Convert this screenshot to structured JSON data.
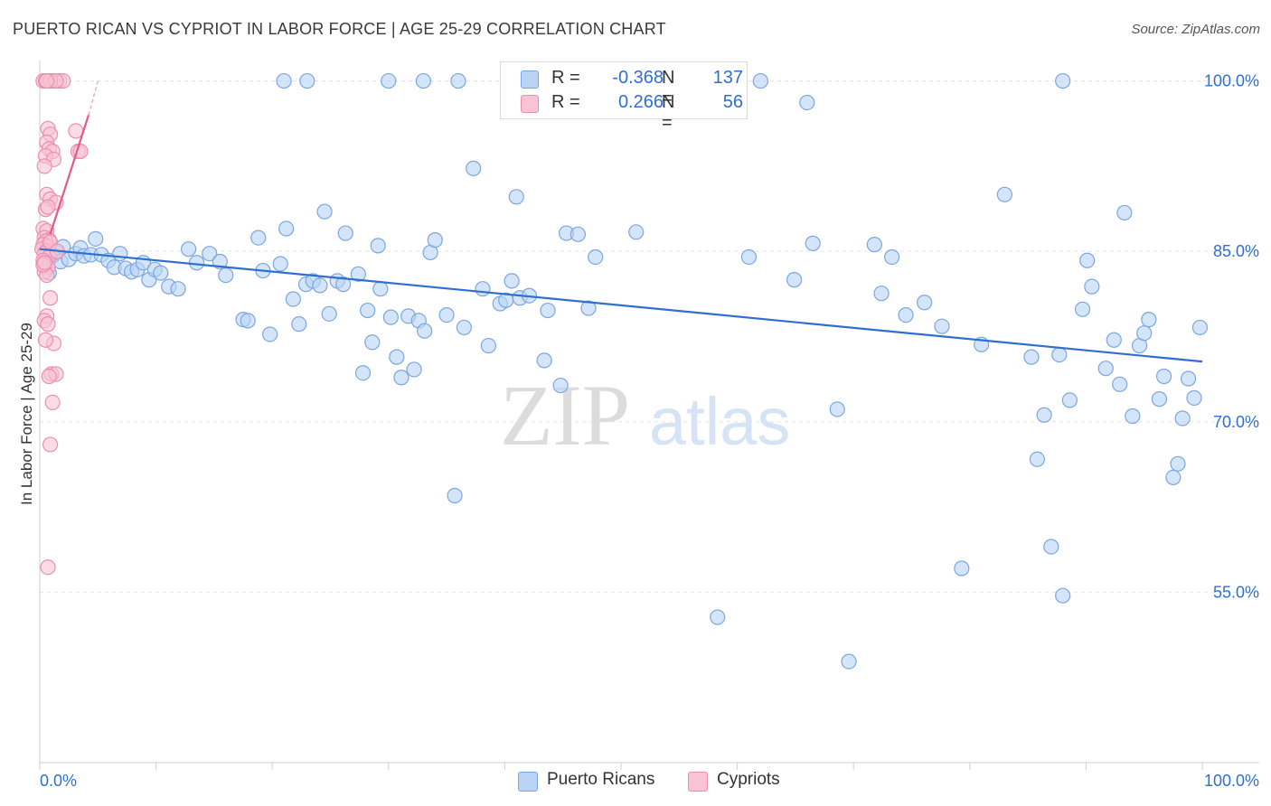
{
  "title": "PUERTO RICAN VS CYPRIOT IN LABOR FORCE | AGE 25-29 CORRELATION CHART",
  "source": "Source: ZipAtlas.com",
  "watermark": {
    "zip": "ZIP",
    "atlas": "atlas"
  },
  "legend": {
    "r_label": "R =",
    "n_label": "N =",
    "rows": [
      {
        "r": "-0.368",
        "n": "137",
        "fill": "#b9d3f5",
        "stroke": "#7ba6e0"
      },
      {
        "r": "0.266",
        "n": "56",
        "fill": "#f9c3d4",
        "stroke": "#ec8fae"
      }
    ]
  },
  "bottom_legend": [
    {
      "label": "Puerto Ricans",
      "fill": "#b9d3f5",
      "stroke": "#7ba6e0"
    },
    {
      "label": "Cypriots",
      "fill": "#f9c3d4",
      "stroke": "#ec8fae"
    }
  ],
  "chart_data": {
    "type": "scatter",
    "title": "PUERTO RICAN VS CYPRIOT IN LABOR FORCE | AGE 25-29 CORRELATION CHART",
    "xlabel": "",
    "ylabel": "In Labor Force | Age 25-29",
    "xlim": [
      0,
      100
    ],
    "ylim": [
      40,
      101
    ],
    "x_tick_labels": [
      "0.0%",
      "100.0%"
    ],
    "y_ticks": [
      55,
      70,
      85,
      100
    ],
    "y_tick_labels": [
      "55.0%",
      "70.0%",
      "85.0%",
      "100.0%"
    ],
    "grid": true,
    "legend_position": "top-center",
    "series": [
      {
        "name": "Puerto Ricans",
        "color": "#2f6fd0",
        "marker_fill": "#b9d3f5",
        "marker_stroke": "#7ba6e0",
        "trend": [
          [
            0,
            85.2
          ],
          [
            100,
            75.3
          ]
        ],
        "points": [
          [
            0.6,
            84.2
          ],
          [
            0.8,
            83.1
          ],
          [
            1.1,
            84.6
          ],
          [
            1.4,
            84.9
          ],
          [
            1.8,
            84.1
          ],
          [
            2.0,
            85.4
          ],
          [
            2.5,
            84.3
          ],
          [
            3.1,
            84.8
          ],
          [
            3.5,
            85.3
          ],
          [
            3.8,
            84.6
          ],
          [
            4.4,
            84.7
          ],
          [
            4.8,
            86.1
          ],
          [
            5.3,
            84.7
          ],
          [
            5.9,
            84.2
          ],
          [
            6.4,
            83.6
          ],
          [
            6.9,
            84.8
          ],
          [
            7.4,
            83.5
          ],
          [
            7.9,
            83.2
          ],
          [
            8.4,
            83.4
          ],
          [
            8.9,
            84.0
          ],
          [
            9.4,
            82.5
          ],
          [
            9.9,
            83.4
          ],
          [
            10.4,
            83.1
          ],
          [
            11.1,
            81.9
          ],
          [
            11.9,
            81.7
          ],
          [
            12.8,
            85.2
          ],
          [
            13.5,
            84.0
          ],
          [
            14.6,
            84.8
          ],
          [
            15.5,
            84.1
          ],
          [
            16.0,
            82.9
          ],
          [
            17.5,
            79.0
          ],
          [
            17.9,
            78.9
          ],
          [
            18.8,
            86.2
          ],
          [
            19.2,
            83.3
          ],
          [
            19.8,
            77.7
          ],
          [
            20.7,
            83.9
          ],
          [
            21.2,
            87.0
          ],
          [
            21.8,
            80.8
          ],
          [
            22.3,
            78.6
          ],
          [
            22.9,
            82.1
          ],
          [
            23.5,
            82.4
          ],
          [
            24.1,
            82.0
          ],
          [
            24.5,
            88.5
          ],
          [
            24.9,
            79.5
          ],
          [
            25.6,
            82.4
          ],
          [
            26.1,
            82.1
          ],
          [
            26.3,
            86.6
          ],
          [
            27.4,
            83.0
          ],
          [
            27.8,
            74.3
          ],
          [
            28.2,
            79.8
          ],
          [
            28.6,
            77.0
          ],
          [
            29.1,
            85.5
          ],
          [
            29.3,
            81.7
          ],
          [
            30.2,
            79.2
          ],
          [
            30.7,
            75.7
          ],
          [
            31.1,
            73.9
          ],
          [
            31.7,
            79.3
          ],
          [
            32.2,
            74.6
          ],
          [
            32.6,
            78.9
          ],
          [
            33.1,
            78.0
          ],
          [
            33.6,
            84.9
          ],
          [
            34.0,
            86.0
          ],
          [
            35.0,
            79.4
          ],
          [
            35.7,
            63.5
          ],
          [
            36.5,
            78.3
          ],
          [
            37.3,
            92.3
          ],
          [
            38.1,
            81.7
          ],
          [
            38.6,
            76.7
          ],
          [
            39.6,
            80.4
          ],
          [
            40.1,
            80.7
          ],
          [
            40.6,
            82.4
          ],
          [
            41.0,
            89.8
          ],
          [
            41.3,
            80.9
          ],
          [
            42.1,
            81.1
          ],
          [
            43.4,
            75.4
          ],
          [
            43.7,
            79.8
          ],
          [
            44.8,
            73.2
          ],
          [
            45.3,
            86.6
          ],
          [
            46.3,
            86.5
          ],
          [
            47.2,
            80.0
          ],
          [
            47.8,
            84.5
          ],
          [
            51.3,
            86.7
          ],
          [
            58.3,
            52.8
          ],
          [
            61.0,
            84.5
          ],
          [
            64.9,
            82.5
          ],
          [
            66.5,
            85.7
          ],
          [
            68.6,
            71.1
          ],
          [
            69.6,
            48.9
          ],
          [
            71.8,
            85.6
          ],
          [
            72.4,
            81.3
          ],
          [
            73.3,
            84.5
          ],
          [
            74.5,
            79.4
          ],
          [
            76.1,
            80.5
          ],
          [
            77.6,
            78.4
          ],
          [
            79.3,
            57.1
          ],
          [
            81.0,
            76.8
          ],
          [
            83.0,
            90.0
          ],
          [
            85.3,
            75.7
          ],
          [
            85.8,
            66.7
          ],
          [
            86.4,
            70.6
          ],
          [
            87.0,
            59.0
          ],
          [
            87.7,
            75.9
          ],
          [
            88.0,
            54.7
          ],
          [
            88.6,
            71.9
          ],
          [
            89.7,
            79.9
          ],
          [
            90.1,
            84.2
          ],
          [
            90.5,
            81.9
          ],
          [
            91.7,
            74.7
          ],
          [
            92.4,
            77.2
          ],
          [
            92.9,
            73.3
          ],
          [
            93.3,
            88.4
          ],
          [
            94.0,
            70.5
          ],
          [
            94.6,
            76.7
          ],
          [
            95.0,
            77.8
          ],
          [
            95.4,
            79.0
          ],
          [
            96.3,
            72.0
          ],
          [
            96.7,
            74.0
          ],
          [
            97.5,
            65.1
          ],
          [
            97.9,
            66.3
          ],
          [
            98.3,
            70.3
          ],
          [
            98.8,
            73.8
          ],
          [
            99.3,
            72.1
          ],
          [
            99.8,
            78.3
          ],
          [
            49.0,
            100.0
          ],
          [
            57.0,
            100.0
          ],
          [
            52.0,
            99.9
          ],
          [
            55.0,
            100.0
          ],
          [
            62.0,
            100.0
          ],
          [
            66.0,
            98.1
          ],
          [
            88.0,
            100.0
          ],
          [
            44.0,
            100.0
          ],
          [
            36.0,
            100.0
          ],
          [
            23.0,
            100.0
          ],
          [
            21.0,
            100.0
          ],
          [
            41.0,
            100.0
          ],
          [
            30.0,
            100.0
          ],
          [
            33.0,
            100.0
          ]
        ]
      },
      {
        "name": "Cypriots",
        "color": "#e8578a",
        "marker_fill": "#f9c3d4",
        "marker_stroke": "#ec8fae",
        "trend": [
          [
            0.9,
            86.5
          ],
          [
            4.2,
            97.0
          ]
        ],
        "trend_dashed_extension": [
          [
            4.2,
            97.0
          ],
          [
            5.0,
            100.0
          ]
        ],
        "points": [
          [
            0.3,
            100.0
          ],
          [
            0.5,
            100.0
          ],
          [
            1.2,
            100.0
          ],
          [
            1.7,
            100.0
          ],
          [
            2.0,
            100.0
          ],
          [
            0.9,
            100.0
          ],
          [
            1.4,
            100.0
          ],
          [
            0.6,
            100.0
          ],
          [
            0.7,
            95.8
          ],
          [
            0.9,
            95.3
          ],
          [
            0.6,
            94.6
          ],
          [
            0.8,
            94.0
          ],
          [
            1.1,
            93.8
          ],
          [
            0.5,
            93.4
          ],
          [
            1.2,
            93.1
          ],
          [
            0.4,
            92.5
          ],
          [
            3.1,
            95.6
          ],
          [
            3.3,
            93.8
          ],
          [
            3.5,
            93.8
          ],
          [
            0.6,
            90.0
          ],
          [
            0.9,
            89.6
          ],
          [
            1.4,
            89.3
          ],
          [
            0.5,
            88.7
          ],
          [
            0.7,
            88.9
          ],
          [
            0.3,
            87.0
          ],
          [
            0.6,
            86.8
          ],
          [
            0.4,
            86.2
          ],
          [
            0.8,
            86.0
          ],
          [
            0.5,
            85.9
          ],
          [
            0.3,
            85.6
          ],
          [
            0.7,
            85.4
          ],
          [
            0.2,
            85.2
          ],
          [
            0.6,
            85.0
          ],
          [
            0.4,
            84.8
          ],
          [
            0.8,
            84.5
          ],
          [
            0.3,
            84.2
          ],
          [
            0.5,
            83.9
          ],
          [
            0.7,
            83.6
          ],
          [
            0.4,
            83.2
          ],
          [
            0.6,
            82.9
          ],
          [
            0.9,
            80.9
          ],
          [
            0.6,
            79.3
          ],
          [
            0.4,
            78.9
          ],
          [
            0.7,
            78.6
          ],
          [
            1.2,
            76.9
          ],
          [
            0.5,
            77.2
          ],
          [
            1.0,
            74.2
          ],
          [
            1.4,
            74.2
          ],
          [
            0.8,
            74.0
          ],
          [
            1.1,
            71.7
          ],
          [
            0.9,
            68.0
          ],
          [
            0.7,
            57.2
          ],
          [
            0.3,
            83.8
          ],
          [
            0.9,
            85.8
          ],
          [
            1.5,
            85.0
          ],
          [
            0.4,
            84.0
          ]
        ]
      }
    ]
  }
}
